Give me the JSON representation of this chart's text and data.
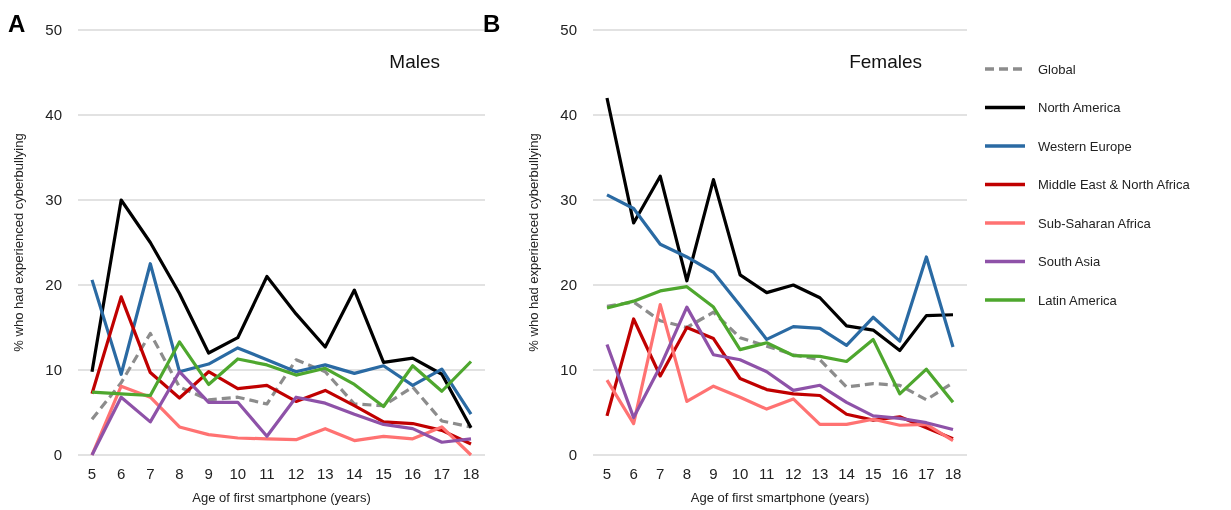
{
  "chart_data": [
    {
      "type": "line",
      "title": "Males",
      "annotations": [
        "A"
      ],
      "xlabel": "Age of first smartphone (years)",
      "ylabel": "% who had experienced cyberbullying",
      "categories": [
        "5",
        "6",
        "7",
        "8",
        "9",
        "10",
        "11",
        "12",
        "13",
        "14",
        "15",
        "16",
        "17",
        "18"
      ],
      "ylim": [
        0,
        50
      ],
      "yticks": [
        0,
        10,
        20,
        30,
        40,
        50
      ],
      "grid": "y",
      "legend": false,
      "marker": "none",
      "series": [
        {
          "color": "#8c8c8c",
          "line_style": "dashed",
          "values": [
            4.2,
            8.5,
            14.3,
            8,
            6.5,
            6.8,
            6,
            11.2,
            9.8,
            6,
            5.8,
            8,
            4,
            3.3
          ]
        },
        {
          "color": "#000000",
          "values": [
            9.8,
            30,
            25,
            19,
            12,
            13.8,
            21,
            16.6,
            12.7,
            19.4,
            10.9,
            11.4,
            9.5,
            3.2
          ]
        },
        {
          "color": "#2a6aa3",
          "values": [
            20.6,
            9.5,
            22.5,
            9.8,
            10.7,
            12.6,
            11.2,
            9.8,
            10.6,
            9.6,
            10.5,
            8.2,
            10.1,
            4.8
          ]
        },
        {
          "color": "#c00000",
          "values": [
            7.2,
            18.6,
            9.7,
            6.7,
            9.8,
            7.8,
            8.2,
            6.3,
            7.6,
            5.8,
            3.9,
            3.7,
            2.9,
            1.3
          ]
        },
        {
          "color": "#ff7272",
          "values": [
            0,
            8.1,
            6.8,
            3.3,
            2.4,
            2,
            1.9,
            1.8,
            3.1,
            1.7,
            2.2,
            1.9,
            3.3,
            0
          ]
        },
        {
          "color": "#8e52a8",
          "values": [
            0,
            6.8,
            3.9,
            9.8,
            6.2,
            6.2,
            2.2,
            6.8,
            6.1,
            4.8,
            3.6,
            3.1,
            1.5,
            1.9
          ]
        },
        {
          "color": "#4ea72e",
          "values": [
            7.4,
            7.2,
            7,
            13.3,
            8.3,
            11.3,
            10.6,
            9.4,
            10.2,
            8.3,
            5.7,
            10.5,
            7.5,
            11
          ]
        }
      ]
    },
    {
      "type": "line",
      "title": "Females",
      "annotations": [
        "B"
      ],
      "xlabel": "Age of first smartphone (years)",
      "ylabel": "% who had experienced cyberbullying",
      "categories": [
        "5",
        "6",
        "7",
        "8",
        "9",
        "10",
        "11",
        "12",
        "13",
        "14",
        "15",
        "16",
        "17",
        "18"
      ],
      "ylim": [
        0,
        50
      ],
      "yticks": [
        0,
        10,
        20,
        30,
        40,
        50
      ],
      "grid": "y",
      "legend": "right",
      "marker": "none",
      "series": [
        {
          "name": "Global",
          "color": "#8c8c8c",
          "line_style": "dashed",
          "values": [
            17.5,
            18,
            15.8,
            15,
            16.8,
            13.8,
            12.8,
            11.8,
            11.2,
            8,
            8.4,
            8.2,
            6.5,
            8.5
          ]
        },
        {
          "name": "North America",
          "color": "#000000",
          "values": [
            42,
            27.3,
            32.8,
            20.5,
            32.4,
            21.2,
            19.1,
            20,
            18.5,
            15.2,
            14.7,
            12.3,
            16.4,
            16.5
          ]
        },
        {
          "name": "Western Europe",
          "color": "#2a6aa3",
          "values": [
            30.6,
            29,
            24.8,
            23.3,
            21.5,
            17.6,
            13.6,
            15.1,
            14.9,
            12.9,
            16.2,
            13.4,
            23.3,
            12.7
          ]
        },
        {
          "name": "Middle East & North Africa",
          "color": "#c00000",
          "values": [
            4.6,
            16,
            9.3,
            15,
            13.7,
            9,
            7.7,
            7.2,
            7,
            4.8,
            4.1,
            4.5,
            3.2,
            1.9
          ]
        },
        {
          "name": "Sub-Saharan Africa",
          "color": "#ff7272",
          "values": [
            8.8,
            3.7,
            17.7,
            6.3,
            8.1,
            6.8,
            5.4,
            6.6,
            3.6,
            3.6,
            4.2,
            3.5,
            3.6,
            1.7
          ]
        },
        {
          "name": "South Asia",
          "color": "#8e52a8",
          "values": [
            13,
            4.4,
            10.4,
            17.4,
            11.8,
            11.2,
            9.8,
            7.6,
            8.2,
            6.2,
            4.6,
            4.3,
            3.8,
            3
          ]
        },
        {
          "name": "Latin America",
          "color": "#4ea72e",
          "values": [
            17.3,
            18.1,
            19.3,
            19.8,
            17.4,
            12.4,
            13.2,
            11.7,
            11.6,
            11,
            13.6,
            7.2,
            10.1,
            6.2
          ]
        }
      ]
    }
  ]
}
